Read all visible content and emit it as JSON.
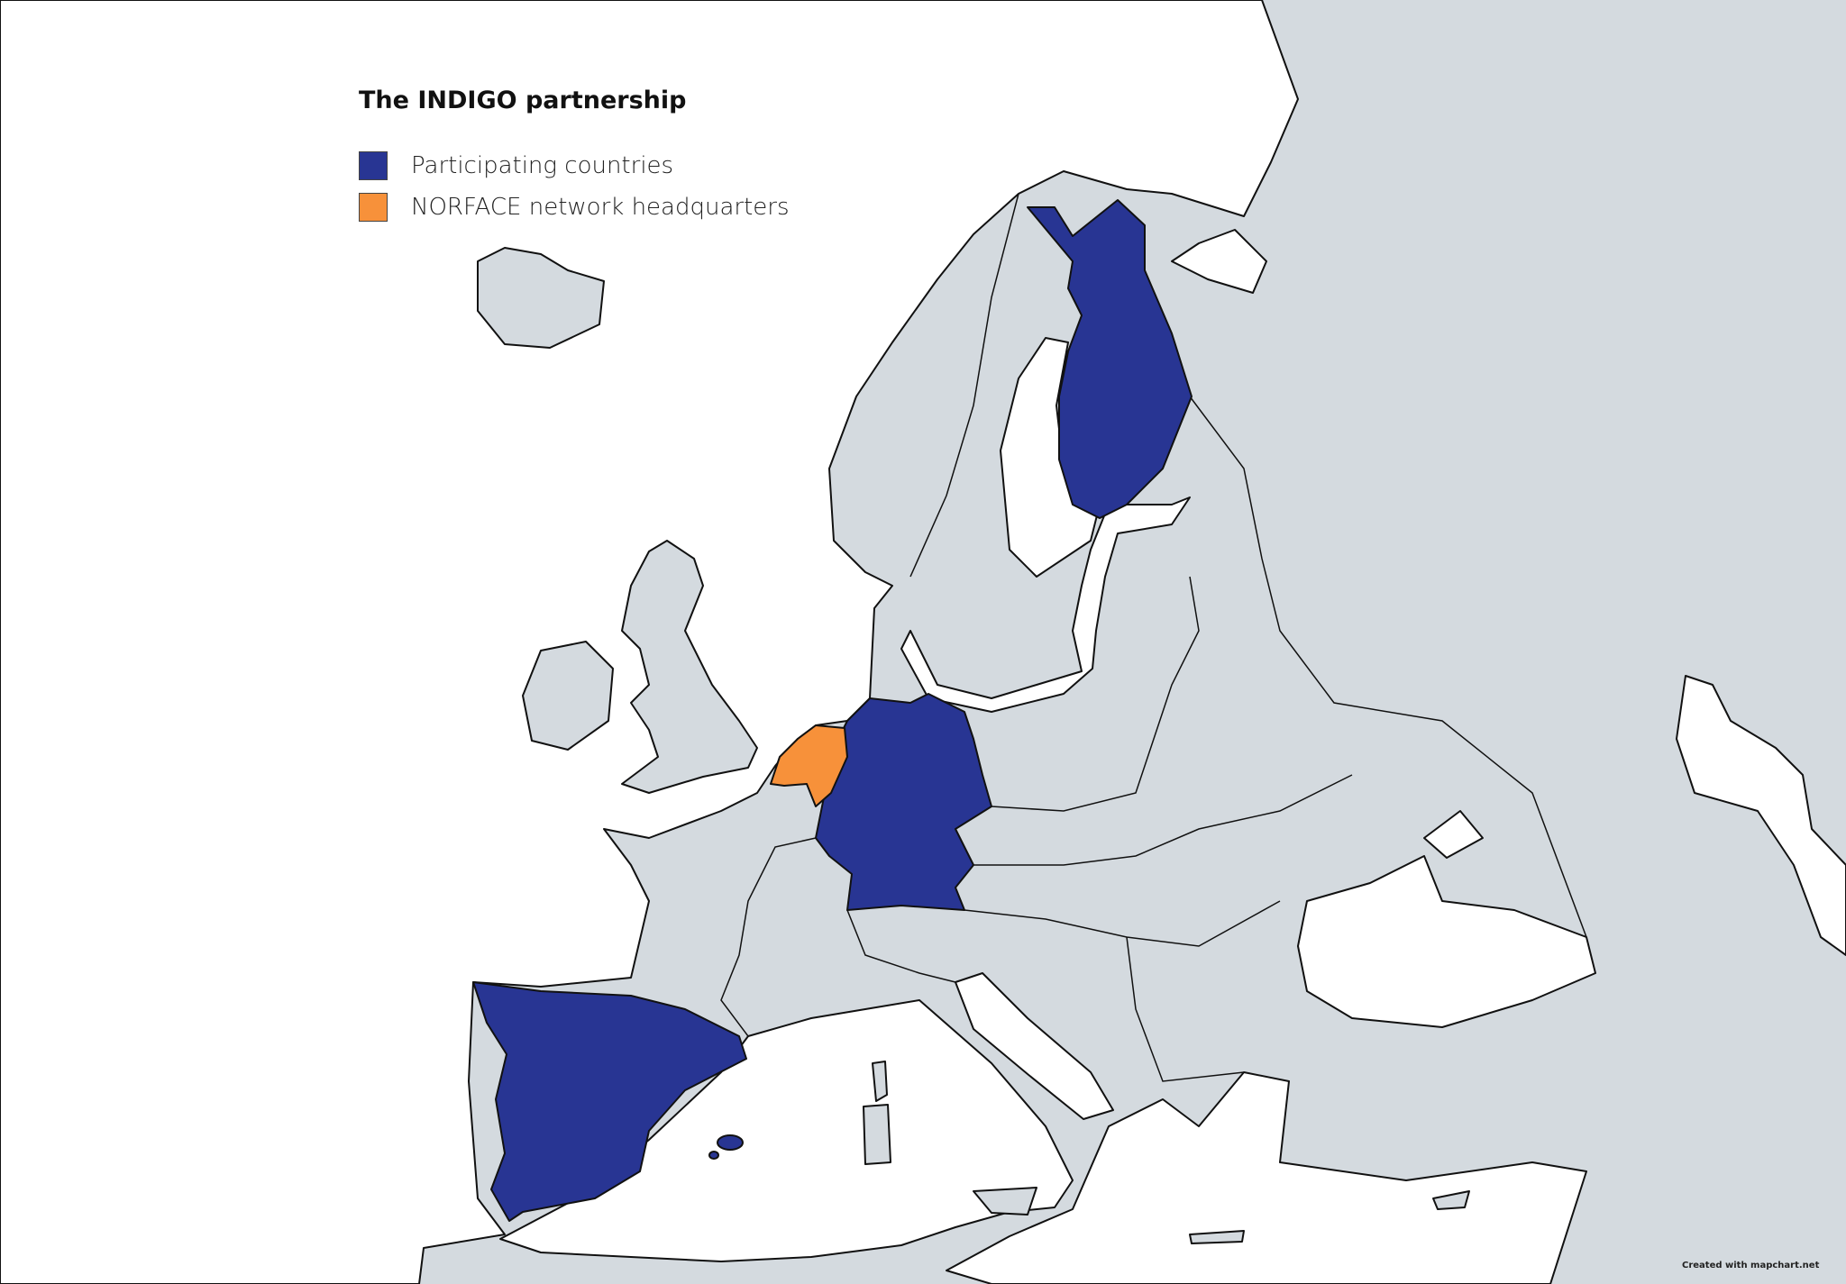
{
  "legend": {
    "title": "The INDIGO partnership",
    "items": [
      {
        "label": "Participating countries",
        "color": "#283593"
      },
      {
        "label": "NORFACE network headquarters",
        "color": "#f7913a"
      }
    ]
  },
  "map": {
    "land_color": "#d4dadf",
    "sea_color": "#ffffff",
    "participating_countries": [
      "Finland",
      "Germany",
      "Spain"
    ],
    "headquarters_country": "Netherlands"
  },
  "credit": "Created with mapchart.net"
}
